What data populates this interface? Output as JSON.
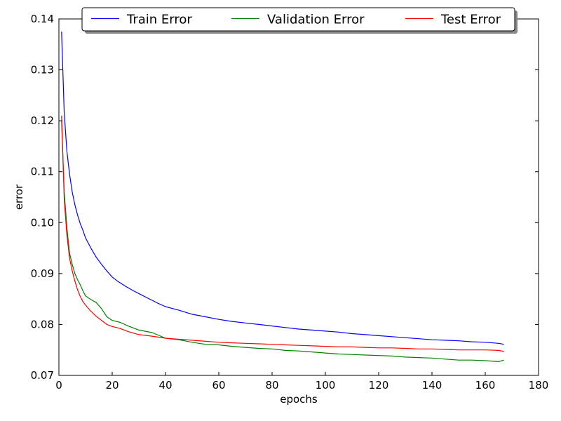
{
  "chart_data": {
    "type": "line",
    "title": "",
    "xlabel": "epochs",
    "ylabel": "error",
    "xlim": [
      0,
      180
    ],
    "ylim": [
      0.07,
      0.14
    ],
    "xticks": [
      "0",
      "20",
      "40",
      "60",
      "80",
      "100",
      "120",
      "140",
      "160",
      "180"
    ],
    "yticks": [
      "0.07",
      "0.08",
      "0.09",
      "0.10",
      "0.11",
      "0.12",
      "0.13",
      "0.14"
    ],
    "grid": false,
    "legend": {
      "placement": "top-center",
      "columns": 3
    },
    "series": [
      {
        "name": "Train Error",
        "color": "#0000ff",
        "points": [
          [
            1,
            0.1375
          ],
          [
            2,
            0.1215
          ],
          [
            3,
            0.114
          ],
          [
            4,
            0.1095
          ],
          [
            5,
            0.106
          ],
          [
            6,
            0.1035
          ],
          [
            7,
            0.1015
          ],
          [
            8,
            0.0998
          ],
          [
            9,
            0.0985
          ],
          [
            10,
            0.097
          ],
          [
            12,
            0.095
          ],
          [
            14,
            0.0932
          ],
          [
            16,
            0.0918
          ],
          [
            18,
            0.0905
          ],
          [
            20,
            0.0893
          ],
          [
            22,
            0.0885
          ],
          [
            25,
            0.0875
          ],
          [
            28,
            0.0866
          ],
          [
            31,
            0.0858
          ],
          [
            34,
            0.085
          ],
          [
            37,
            0.0842
          ],
          [
            40,
            0.0835
          ],
          [
            45,
            0.0828
          ],
          [
            50,
            0.082
          ],
          [
            55,
            0.0815
          ],
          [
            60,
            0.081
          ],
          [
            65,
            0.0806
          ],
          [
            70,
            0.0803
          ],
          [
            75,
            0.08
          ],
          [
            80,
            0.0797
          ],
          [
            85,
            0.0794
          ],
          [
            90,
            0.0791
          ],
          [
            95,
            0.0789
          ],
          [
            100,
            0.0787
          ],
          [
            105,
            0.0785
          ],
          [
            110,
            0.0782
          ],
          [
            115,
            0.078
          ],
          [
            120,
            0.0778
          ],
          [
            125,
            0.0776
          ],
          [
            130,
            0.0774
          ],
          [
            135,
            0.0772
          ],
          [
            140,
            0.077
          ],
          [
            145,
            0.0769
          ],
          [
            150,
            0.0768
          ],
          [
            155,
            0.0766
          ],
          [
            160,
            0.0765
          ],
          [
            165,
            0.0763
          ],
          [
            167,
            0.0761
          ]
        ]
      },
      {
        "name": "Validation Error",
        "color": "#008000",
        "points": [
          [
            1,
            0.12
          ],
          [
            2,
            0.106
          ],
          [
            3,
            0.099
          ],
          [
            4,
            0.094
          ],
          [
            5,
            0.0918
          ],
          [
            6,
            0.09
          ],
          [
            7,
            0.0888
          ],
          [
            8,
            0.0878
          ],
          [
            9,
            0.0866
          ],
          [
            10,
            0.0856
          ],
          [
            12,
            0.0849
          ],
          [
            14,
            0.0843
          ],
          [
            16,
            0.0831
          ],
          [
            18,
            0.0815
          ],
          [
            20,
            0.0808
          ],
          [
            23,
            0.0804
          ],
          [
            26,
            0.0797
          ],
          [
            30,
            0.0789
          ],
          [
            35,
            0.0784
          ],
          [
            40,
            0.0773
          ],
          [
            45,
            0.077
          ],
          [
            50,
            0.0765
          ],
          [
            55,
            0.0761
          ],
          [
            60,
            0.076
          ],
          [
            65,
            0.0757
          ],
          [
            70,
            0.0755
          ],
          [
            75,
            0.0753
          ],
          [
            80,
            0.0752
          ],
          [
            85,
            0.0749
          ],
          [
            90,
            0.0748
          ],
          [
            95,
            0.0746
          ],
          [
            100,
            0.0744
          ],
          [
            105,
            0.0742
          ],
          [
            110,
            0.0741
          ],
          [
            115,
            0.074
          ],
          [
            120,
            0.0739
          ],
          [
            125,
            0.0738
          ],
          [
            130,
            0.0736
          ],
          [
            135,
            0.0735
          ],
          [
            140,
            0.0734
          ],
          [
            145,
            0.0732
          ],
          [
            150,
            0.073
          ],
          [
            155,
            0.073
          ],
          [
            160,
            0.0729
          ],
          [
            165,
            0.0727
          ],
          [
            167,
            0.073
          ]
        ]
      },
      {
        "name": "Test Error",
        "color": "#ff0000",
        "points": [
          [
            1,
            0.121
          ],
          [
            2,
            0.1045
          ],
          [
            3,
            0.0975
          ],
          [
            4,
            0.093
          ],
          [
            5,
            0.0905
          ],
          [
            6,
            0.0885
          ],
          [
            7,
            0.0868
          ],
          [
            8,
            0.0855
          ],
          [
            9,
            0.0845
          ],
          [
            10,
            0.0838
          ],
          [
            12,
            0.0826
          ],
          [
            14,
            0.0816
          ],
          [
            16,
            0.0808
          ],
          [
            18,
            0.08
          ],
          [
            20,
            0.0796
          ],
          [
            23,
            0.0792
          ],
          [
            26,
            0.0786
          ],
          [
            30,
            0.078
          ],
          [
            35,
            0.0777
          ],
          [
            40,
            0.0773
          ],
          [
            45,
            0.0771
          ],
          [
            50,
            0.0769
          ],
          [
            55,
            0.0767
          ],
          [
            60,
            0.0765
          ],
          [
            65,
            0.0764
          ],
          [
            70,
            0.0763
          ],
          [
            75,
            0.0762
          ],
          [
            80,
            0.0761
          ],
          [
            85,
            0.076
          ],
          [
            90,
            0.0759
          ],
          [
            95,
            0.0758
          ],
          [
            100,
            0.0757
          ],
          [
            105,
            0.0756
          ],
          [
            110,
            0.0756
          ],
          [
            115,
            0.0755
          ],
          [
            120,
            0.0754
          ],
          [
            125,
            0.0754
          ],
          [
            130,
            0.0753
          ],
          [
            135,
            0.0752
          ],
          [
            140,
            0.0752
          ],
          [
            145,
            0.0751
          ],
          [
            150,
            0.075
          ],
          [
            155,
            0.075
          ],
          [
            160,
            0.075
          ],
          [
            165,
            0.0749
          ],
          [
            167,
            0.0747
          ]
        ]
      }
    ]
  }
}
